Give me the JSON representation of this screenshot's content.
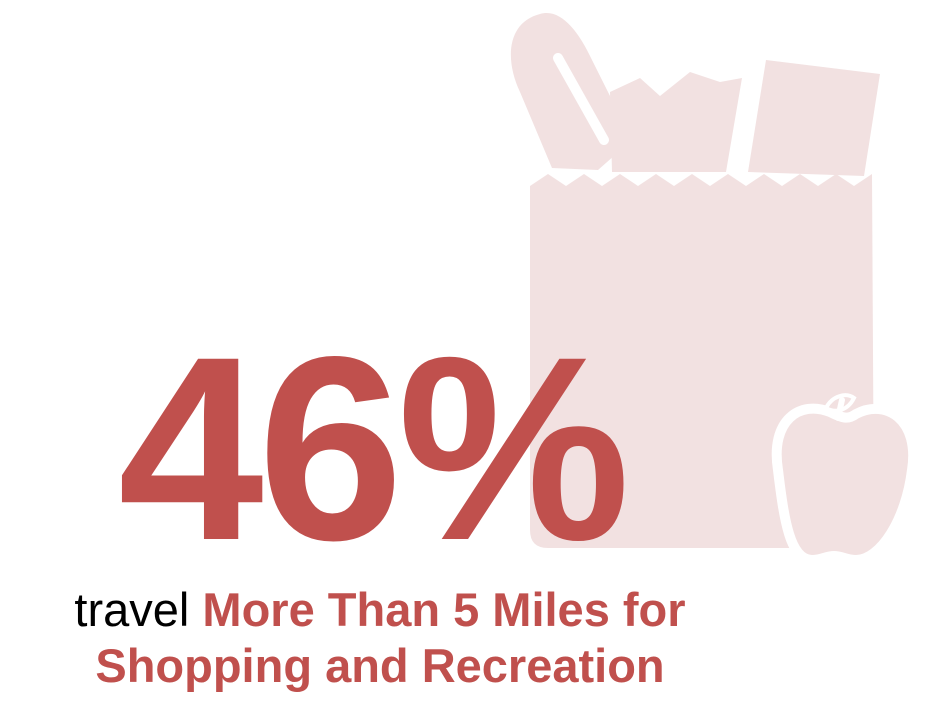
{
  "statistic": {
    "value": "46%",
    "percent": 46
  },
  "caption": {
    "lead": "travel",
    "line1_emphasis": "More Than 5 Miles for",
    "line2_emphasis": "Shopping and Recreation"
  },
  "colors": {
    "accent": "#c0504d",
    "icon_tint": "#f2e1e1",
    "text": "#000000",
    "background": "#ffffff"
  },
  "icons": {
    "bag": "grocery-bag-icon",
    "apple": "apple-icon"
  }
}
